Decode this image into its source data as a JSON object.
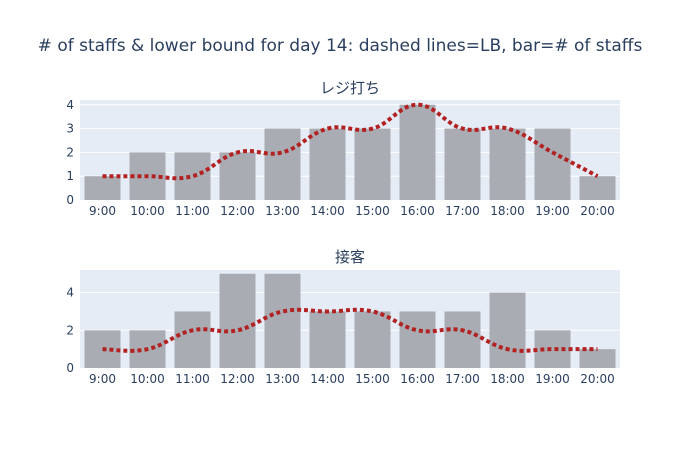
{
  "title": "# of staffs & lower bound for day 14: dashed lines=LB, bar=# of staffs",
  "colors": {
    "bar": "#a9acb2",
    "line": "#b22222",
    "plot_bg": "#e5ecf6",
    "text": "#2a3f5f"
  },
  "chart_data": [
    {
      "type": "bar",
      "title": "レジ打ち",
      "categories": [
        "9:00",
        "10:00",
        "11:00",
        "12:00",
        "13:00",
        "14:00",
        "15:00",
        "16:00",
        "17:00",
        "18:00",
        "19:00",
        "20:00"
      ],
      "ylim": [
        0,
        4.2
      ],
      "yticks": [
        0,
        1,
        2,
        3,
        4
      ],
      "series": [
        {
          "type": "bar",
          "values": [
            1,
            2,
            2,
            2,
            3,
            3,
            3,
            4,
            3,
            3,
            3,
            1
          ]
        },
        {
          "type": "line",
          "style": "dashed",
          "values": [
            1,
            1,
            1,
            2,
            2,
            3,
            3,
            4,
            3,
            3,
            2,
            1
          ]
        }
      ]
    },
    {
      "type": "bar",
      "title": "接客",
      "categories": [
        "9:00",
        "10:00",
        "11:00",
        "12:00",
        "13:00",
        "14:00",
        "15:00",
        "16:00",
        "17:00",
        "18:00",
        "19:00",
        "20:00"
      ],
      "ylim": [
        0,
        5.2
      ],
      "yticks": [
        0,
        2,
        4
      ],
      "series": [
        {
          "type": "bar",
          "values": [
            2,
            2,
            3,
            5,
            5,
            3,
            3,
            3,
            3,
            4,
            2,
            1
          ]
        },
        {
          "type": "line",
          "style": "dashed",
          "values": [
            1,
            1,
            2,
            2,
            3,
            3,
            3,
            2,
            2,
            1,
            1,
            1
          ]
        }
      ]
    }
  ]
}
